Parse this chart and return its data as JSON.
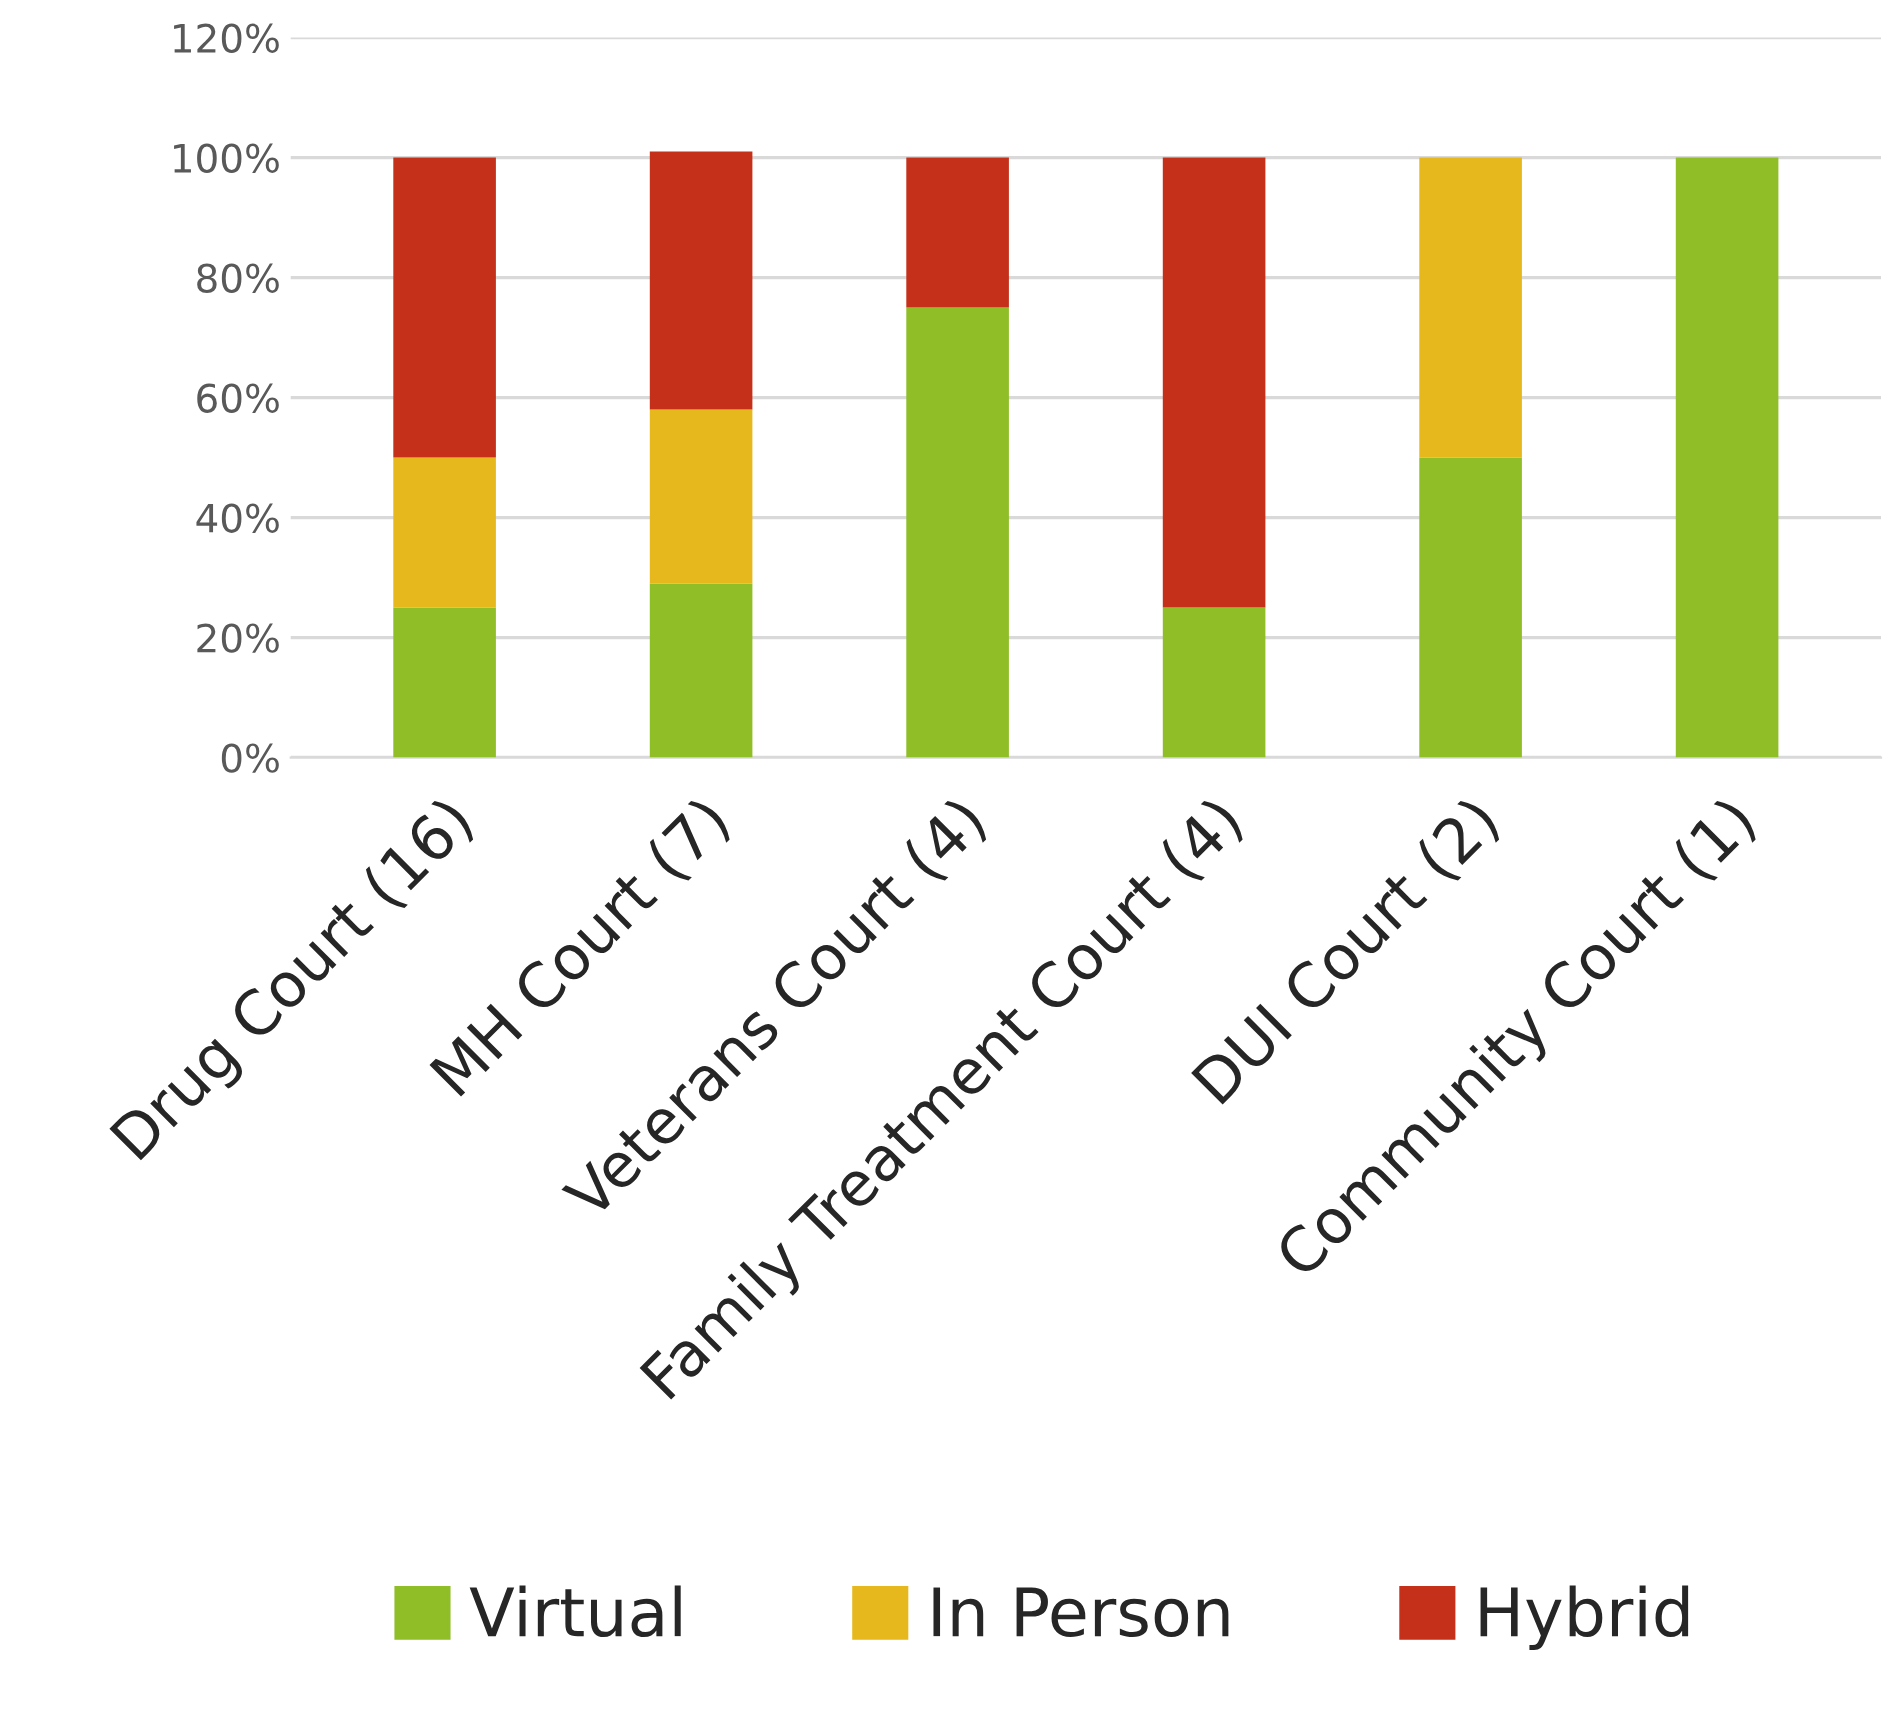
{
  "chart_data": {
    "type": "bar",
    "stacked": true,
    "categories": [
      "Drug Court (16)",
      "MH Court (7)",
      "Veterans Court (4)",
      "Family Treatment Court (4)",
      "DUI Court (2)",
      "Community Court (1)"
    ],
    "series": [
      {
        "name": "Virtual",
        "color": "#8fbe27",
        "values": [
          25,
          29,
          75,
          25,
          50,
          100
        ]
      },
      {
        "name": "In Person",
        "color": "#e6b81e",
        "values": [
          25,
          29,
          null,
          null,
          50,
          null
        ]
      },
      {
        "name": "Hybrid",
        "color": "#c5301a",
        "values": [
          50,
          43,
          25,
          75,
          null,
          null
        ]
      }
    ],
    "ylim": [
      0,
      120
    ],
    "yticks": [
      {
        "value": 0,
        "label": "0%"
      },
      {
        "value": 20,
        "label": "20%"
      },
      {
        "value": 40,
        "label": "40%"
      },
      {
        "value": 60,
        "label": "60%"
      },
      {
        "value": 80,
        "label": "80%"
      },
      {
        "value": 100,
        "label": "100%"
      },
      {
        "value": 120,
        "label": "120%"
      }
    ],
    "grid": "y",
    "legend": "bottom"
  }
}
